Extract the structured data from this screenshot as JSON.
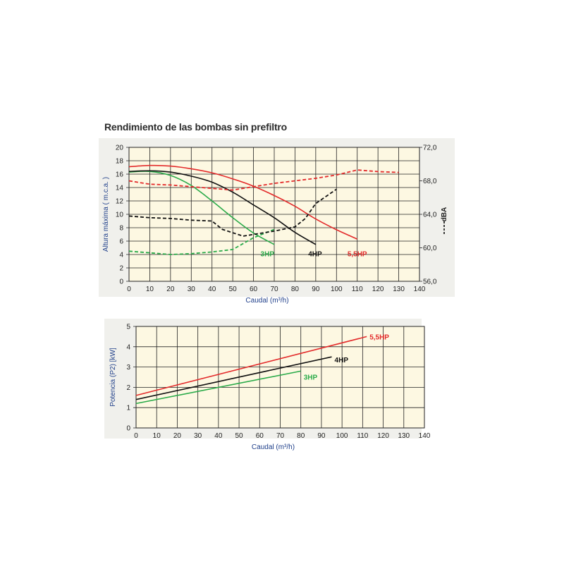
{
  "title": "Rendimiento de las bombas sin prefiltro",
  "colors": {
    "panel": "#f0f0ec",
    "plot": "#fdf8e2",
    "grid": "#222222",
    "axis_label": "#1f3f8a",
    "3HP": "#2bab4a",
    "4HP": "#111111",
    "5,5HP": "#e32b2b"
  },
  "chart_data": [
    {
      "type": "line",
      "xlabel": "Caudal (m³/h)",
      "ylabel": "Altura máxima ( m.c.a. )",
      "y2label": "dBA",
      "xlim": [
        0,
        140
      ],
      "ylim": [
        0,
        20
      ],
      "y2lim": [
        56,
        72
      ],
      "xticks": [
        "0",
        "10",
        "20",
        "30",
        "40",
        "50",
        "60",
        "70",
        "80",
        "90",
        "100",
        "110",
        "120",
        "130",
        "140"
      ],
      "yticks": [
        "0",
        "2",
        "4",
        "6",
        "8",
        "10",
        "12",
        "14",
        "16",
        "18",
        "20"
      ],
      "y2ticks": [
        "56,0",
        "60,0",
        "64,0",
        "68,0",
        "72,0"
      ],
      "grid": true,
      "series": [
        {
          "name": "3HP",
          "label": "3HP",
          "color_key": "3HP",
          "axis": "left",
          "style": "solid",
          "x": [
            0,
            10,
            20,
            30,
            40,
            50,
            60,
            70
          ],
          "y": [
            16.3,
            16.4,
            15.8,
            14.3,
            12.0,
            9.5,
            7.2,
            5.5
          ]
        },
        {
          "name": "4HP",
          "label": "4HP",
          "color_key": "4HP",
          "axis": "left",
          "style": "solid",
          "x": [
            0,
            10,
            20,
            30,
            40,
            50,
            60,
            70,
            80,
            90
          ],
          "y": [
            16.4,
            16.5,
            16.3,
            15.7,
            14.8,
            13.3,
            11.4,
            9.5,
            7.3,
            5.5
          ]
        },
        {
          "name": "5,5HP",
          "label": "5,5HP",
          "color_key": "5,5HP",
          "axis": "left",
          "style": "solid",
          "x": [
            0,
            10,
            20,
            30,
            40,
            50,
            60,
            70,
            80,
            90,
            100,
            110
          ],
          "y": [
            17.1,
            17.3,
            17.2,
            16.8,
            16.2,
            15.3,
            14.2,
            12.8,
            11.2,
            9.3,
            7.7,
            6.3
          ]
        },
        {
          "name": "3HP dBA",
          "label": "",
          "color_key": "3HP",
          "axis": "right",
          "style": "dashed",
          "x": [
            0,
            10,
            20,
            30,
            40,
            50,
            60,
            70
          ],
          "y2": [
            59.6,
            59.4,
            59.2,
            59.3,
            59.5,
            59.8,
            61.2,
            62.2
          ]
        },
        {
          "name": "4HP dBA",
          "label": "",
          "color_key": "4HP",
          "axis": "right",
          "style": "dashed",
          "x": [
            0,
            10,
            20,
            30,
            40,
            45,
            50,
            55,
            60,
            70,
            80,
            85,
            90,
            100
          ],
          "y2": [
            63.8,
            63.6,
            63.5,
            63.3,
            63.2,
            62.2,
            61.8,
            61.4,
            61.6,
            62.0,
            62.5,
            63.5,
            65.3,
            67.0
          ]
        },
        {
          "name": "5,5HP dBA",
          "label": "",
          "color_key": "5,5HP",
          "axis": "right",
          "style": "dashed",
          "x": [
            0,
            10,
            20,
            30,
            40,
            50,
            60,
            70,
            80,
            90,
            100,
            110,
            120,
            130
          ],
          "y2": [
            68.0,
            67.6,
            67.5,
            67.3,
            67.1,
            66.9,
            67.3,
            67.7,
            68.0,
            68.3,
            68.7,
            69.3,
            69.1,
            69.0
          ]
        }
      ]
    },
    {
      "type": "line",
      "xlabel": "Caudal (m³/h)",
      "ylabel": "Potencia (P2) [kW]",
      "xlim": [
        0,
        140
      ],
      "ylim": [
        0,
        5
      ],
      "xticks": [
        "0",
        "10",
        "20",
        "30",
        "40",
        "50",
        "60",
        "70",
        "80",
        "90",
        "100",
        "110",
        "120",
        "130",
        "140"
      ],
      "yticks": [
        "0",
        "1",
        "2",
        "3",
        "4",
        "5"
      ],
      "grid": true,
      "series": [
        {
          "name": "3HP",
          "label": "3HP",
          "color_key": "3HP",
          "x": [
            0,
            80
          ],
          "y": [
            1.2,
            2.8
          ]
        },
        {
          "name": "4HP",
          "label": "4HP",
          "color_key": "4HP",
          "x": [
            0,
            95
          ],
          "y": [
            1.4,
            3.5
          ]
        },
        {
          "name": "5,5HP",
          "label": "5,5HP",
          "color_key": "5,5HP",
          "x": [
            0,
            112
          ],
          "y": [
            1.6,
            4.5
          ]
        }
      ]
    }
  ]
}
